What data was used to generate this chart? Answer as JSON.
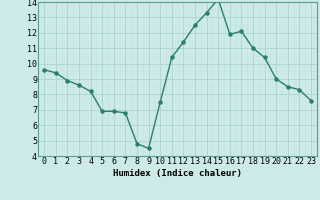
{
  "x": [
    0,
    1,
    2,
    3,
    4,
    5,
    6,
    7,
    8,
    9,
    10,
    11,
    12,
    13,
    14,
    15,
    16,
    17,
    18,
    19,
    20,
    21,
    22,
    23
  ],
  "y": [
    9.6,
    9.4,
    8.9,
    8.6,
    8.2,
    6.9,
    6.9,
    6.8,
    4.8,
    4.5,
    7.5,
    10.4,
    11.4,
    12.5,
    13.3,
    14.2,
    11.9,
    12.1,
    11.0,
    10.4,
    9.0,
    8.5,
    8.3,
    7.6
  ],
  "line_color": "#2d7d6e",
  "marker": "o",
  "markersize": 2.2,
  "linewidth": 1.0,
  "bg_color": "#cceae7",
  "grid_color_major": "#aed4d0",
  "grid_color_minor": "#c2e3e0",
  "xlabel": "Humidex (Indice chaleur)",
  "ylim": [
    4,
    14
  ],
  "xlim_min": -0.5,
  "xlim_max": 23.5,
  "yticks": [
    4,
    5,
    6,
    7,
    8,
    9,
    10,
    11,
    12,
    13,
    14
  ],
  "xticks": [
    0,
    1,
    2,
    3,
    4,
    5,
    6,
    7,
    8,
    9,
    10,
    11,
    12,
    13,
    14,
    15,
    16,
    17,
    18,
    19,
    20,
    21,
    22,
    23
  ],
  "xtick_labels": [
    "0",
    "1",
    "2",
    "3",
    "4",
    "5",
    "6",
    "7",
    "8",
    "9",
    "10",
    "11",
    "12",
    "13",
    "14",
    "15",
    "16",
    "17",
    "18",
    "19",
    "20",
    "21",
    "22",
    "23"
  ],
  "xlabel_fontsize": 6.5,
  "tick_fontsize": 6,
  "spine_color": "#5a9e96"
}
